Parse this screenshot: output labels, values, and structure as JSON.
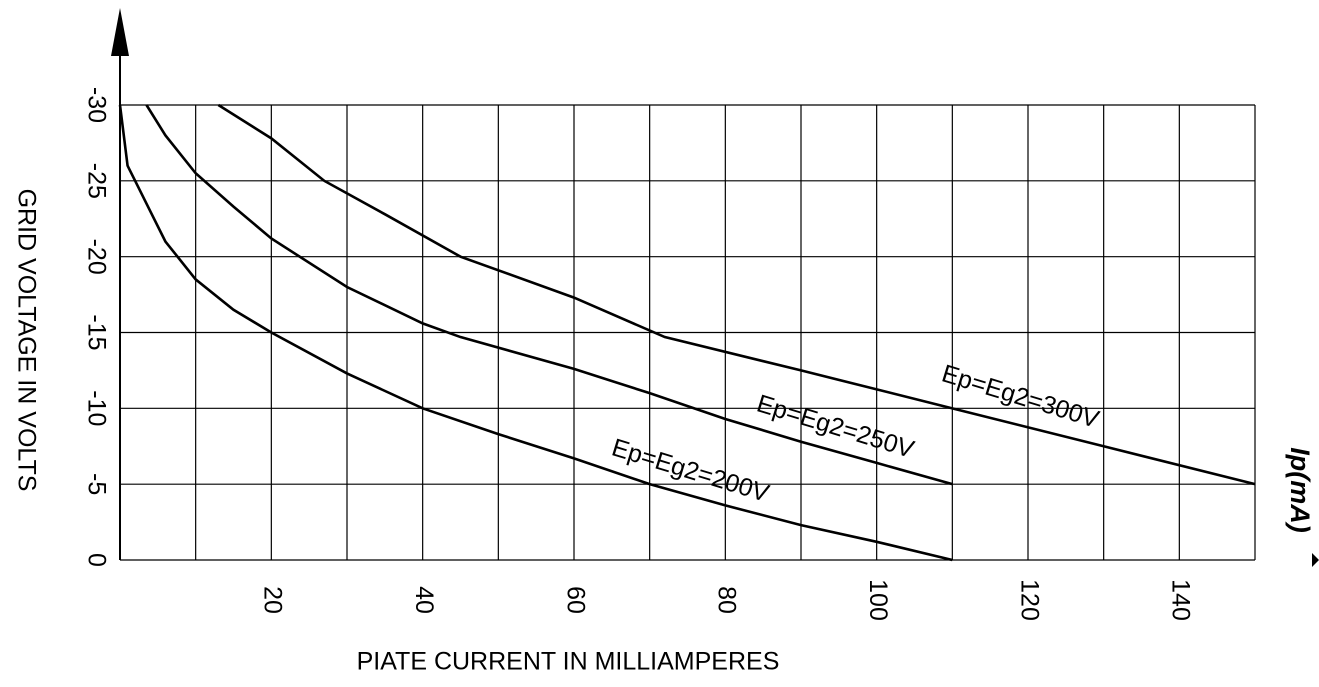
{
  "chart_data": {
    "type": "line",
    "xlabel": "PIATE CURRENT IN MILLIAMPERES",
    "ylabel": "GRID VOLTAGE IN VOLTS",
    "x_unit": "Ip(mA)",
    "xlim": [
      0,
      150
    ],
    "ylim": [
      0,
      -30
    ],
    "xticks": [
      20,
      40,
      60,
      80,
      100,
      120,
      140
    ],
    "xgrid": [
      10,
      30,
      50,
      70,
      90,
      110,
      130,
      150
    ],
    "yticks": [
      0,
      -5,
      -10,
      -15,
      -20,
      -25,
      -30
    ],
    "grid": true,
    "color": "#000000",
    "series": [
      {
        "name": "Ep=Eg2=200V",
        "x": [
          0,
          0.5,
          1,
          2,
          4,
          6,
          10,
          15,
          20,
          30,
          40,
          50,
          60,
          70,
          80,
          90,
          100,
          110
        ],
        "values": [
          -30,
          -28,
          -26,
          -25,
          -23,
          -21,
          -18.5,
          -16.5,
          -15,
          -12.3,
          -10,
          -8.3,
          -6.7,
          -5,
          -3.6,
          -2.3,
          -1.2,
          0
        ]
      },
      {
        "name": "Ep=Eg2=250V",
        "x": [
          3.5,
          6,
          10,
          15,
          20,
          30,
          40,
          45,
          60,
          70,
          80,
          90,
          100,
          110
        ],
        "values": [
          -30,
          -28,
          -25.5,
          -23.3,
          -21.2,
          -18,
          -15.6,
          -14.7,
          -12.6,
          -11,
          -9.3,
          -7.8,
          -6.4,
          -5
        ]
      },
      {
        "name": "Ep=Eg2=300V",
        "x": [
          13,
          20,
          27,
          35,
          45,
          60,
          72,
          90,
          110,
          130,
          150
        ],
        "values": [
          -30,
          -27.8,
          -25,
          -22.8,
          -20,
          -17.3,
          -14.7,
          -12.5,
          -10,
          -7.5,
          -5
        ]
      }
    ]
  }
}
